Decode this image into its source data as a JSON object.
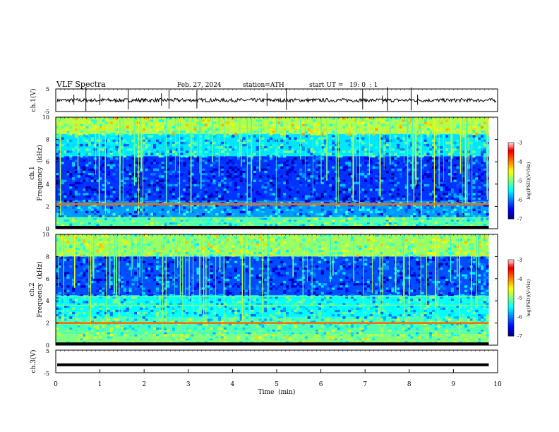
{
  "header": {
    "title": "VLF Spectra",
    "date": "Feb. 27, 2024",
    "station": "station=ATH",
    "start": "start UT =   19: 0  : 1"
  },
  "chart_data": [
    {
      "type": "line",
      "ylabel": "ch.1(V)",
      "ylim": [
        -5,
        5
      ],
      "yticks": [
        "5",
        "-5"
      ],
      "xlim": [
        0,
        10
      ],
      "baseline_level": 0,
      "spike_count": 14
    },
    {
      "type": "heatmap",
      "ylabel_line1": "ch.1",
      "ylabel_line2": "Frequency  (kHz)",
      "ylim": [
        0,
        10
      ],
      "yticks": [
        "0",
        "2",
        "4",
        "6",
        "8",
        "10"
      ],
      "xlim": [
        0,
        9.8
      ],
      "colorbar": {
        "label": "log(PSD)(V²/Hz)",
        "ticks": [
          "-3",
          "-4",
          "-5",
          "-6",
          "-7"
        ],
        "range": [
          -7,
          -3
        ]
      },
      "bands": [
        {
          "y0": 8.5,
          "y1": 10,
          "level": -4.8
        },
        {
          "y0": 6.5,
          "y1": 8.5,
          "level": -5.6
        },
        {
          "y0": 2.5,
          "y1": 6.5,
          "level": -6.3
        },
        {
          "y0": 1.0,
          "y1": 2.5,
          "level": -5.9
        },
        {
          "y0": 0.0,
          "y1": 1.0,
          "level": -5.2
        }
      ],
      "lines_khz": [
        2.2,
        1.0,
        0.6,
        0.2
      ],
      "strong_lines_khz": [
        2.2
      ]
    },
    {
      "type": "heatmap",
      "ylabel_line1": "ch.2",
      "ylabel_line2": "Frequency  (kHz)",
      "ylim": [
        0,
        10
      ],
      "yticks": [
        "0",
        "2",
        "4",
        "6",
        "8",
        "10"
      ],
      "xlim": [
        0,
        9.8
      ],
      "colorbar": {
        "label": "log(PSD)(V²/Hz)",
        "ticks": [
          "-3",
          "-4",
          "-5",
          "-6",
          "-7"
        ],
        "range": [
          -7,
          -3
        ]
      },
      "bands": [
        {
          "y0": 8.0,
          "y1": 10,
          "level": -4.9
        },
        {
          "y0": 4.5,
          "y1": 8.0,
          "level": -6.2
        },
        {
          "y0": 2.5,
          "y1": 4.5,
          "level": -5.5
        },
        {
          "y0": 1.0,
          "y1": 2.5,
          "level": -5.2
        },
        {
          "y0": 0.0,
          "y1": 1.0,
          "level": -5.0
        }
      ],
      "lines_khz": [
        2.0,
        3.6,
        4.4,
        1.2,
        0.4
      ],
      "strong_lines_khz": [
        2.0
      ]
    },
    {
      "type": "line",
      "ylabel": "ch.3(V)",
      "ylim": [
        -5,
        5
      ],
      "yticks": [
        "5",
        "-5"
      ],
      "xlim": [
        0,
        10
      ],
      "baseline_level": -1.5,
      "xlabel": "Time  (min)",
      "xticks": [
        "0",
        "1",
        "2",
        "3",
        "4",
        "5",
        "6",
        "7",
        "8",
        "9",
        "10"
      ]
    }
  ]
}
